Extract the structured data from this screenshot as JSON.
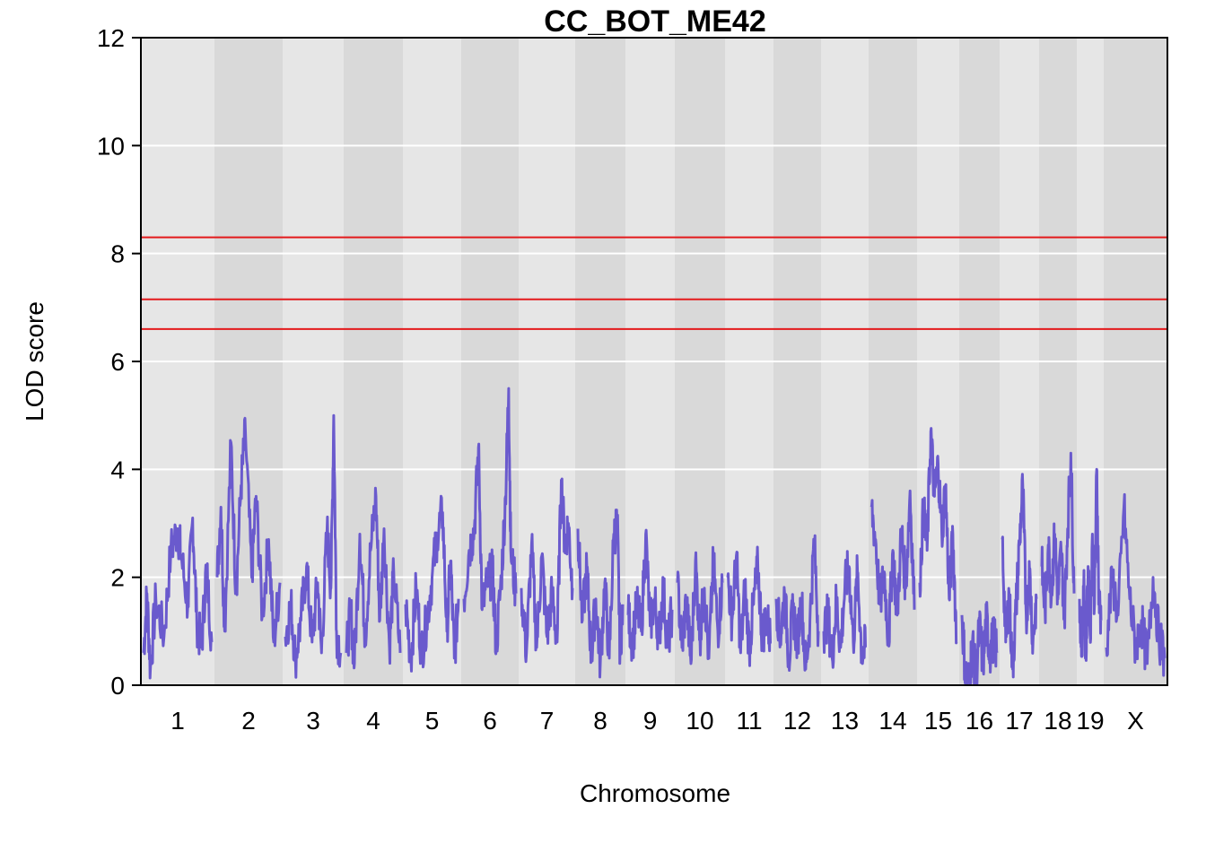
{
  "chart_data": {
    "type": "line",
    "title": "CC_BOT_ME42",
    "xlabel": "Chromosome",
    "ylabel": "LOD score",
    "ylim": [
      0,
      12
    ],
    "yticks": [
      0,
      2,
      4,
      6,
      8,
      10,
      12
    ],
    "grid": true,
    "legend": "none",
    "chromosomes": [
      {
        "name": "1",
        "peaks": [
          [
            0,
            0.6
          ],
          [
            0.05,
            1.7
          ],
          [
            0.1,
            0.3
          ],
          [
            0.18,
            1.6
          ],
          [
            0.3,
            0.9
          ],
          [
            0.4,
            2.5
          ],
          [
            0.5,
            2.9
          ],
          [
            0.55,
            2.4
          ],
          [
            0.65,
            1.5
          ],
          [
            0.72,
            3.1
          ],
          [
            0.78,
            1.2
          ],
          [
            0.85,
            0.7
          ],
          [
            0.92,
            2.2
          ],
          [
            1,
            0.8
          ]
        ]
      },
      {
        "name": "2",
        "peaks": [
          [
            0,
            2.0
          ],
          [
            0.06,
            3.3
          ],
          [
            0.12,
            1.0
          ],
          [
            0.22,
            4.5
          ],
          [
            0.3,
            1.7
          ],
          [
            0.38,
            3.7
          ],
          [
            0.45,
            4.7
          ],
          [
            0.55,
            2.0
          ],
          [
            0.62,
            3.5
          ],
          [
            0.72,
            1.3
          ],
          [
            0.82,
            2.7
          ],
          [
            0.9,
            0.8
          ],
          [
            1,
            1.9
          ]
        ]
      },
      {
        "name": "3",
        "peaks": [
          [
            0,
            0.9
          ],
          [
            0.1,
            1.5
          ],
          [
            0.18,
            0.5
          ],
          [
            0.28,
            1.2
          ],
          [
            0.38,
            2.2
          ],
          [
            0.48,
            0.8
          ],
          [
            0.58,
            1.9
          ],
          [
            0.65,
            0.6
          ],
          [
            0.75,
            2.9
          ],
          [
            0.82,
            1.8
          ],
          [
            0.87,
            5.0
          ],
          [
            0.92,
            1.0
          ],
          [
            1,
            0.6
          ]
        ]
      },
      {
        "name": "4",
        "peaks": [
          [
            0,
            0.6
          ],
          [
            0.08,
            1.4
          ],
          [
            0.15,
            0.4
          ],
          [
            0.25,
            2.8
          ],
          [
            0.35,
            0.9
          ],
          [
            0.45,
            2.5
          ],
          [
            0.55,
            3.5
          ],
          [
            0.62,
            1.2
          ],
          [
            0.7,
            2.9
          ],
          [
            0.8,
            0.7
          ],
          [
            0.88,
            2.1
          ],
          [
            1,
            0.6
          ]
        ]
      },
      {
        "name": "5",
        "peaks": [
          [
            0,
            1.5
          ],
          [
            0.1,
            0.5
          ],
          [
            0.2,
            1.8
          ],
          [
            0.3,
            0.6
          ],
          [
            0.4,
            1.2
          ],
          [
            0.5,
            2.0
          ],
          [
            0.6,
            2.8
          ],
          [
            0.7,
            3.2
          ],
          [
            0.78,
            1.0
          ],
          [
            0.85,
            2.3
          ],
          [
            0.92,
            0.5
          ],
          [
            1,
            1.6
          ]
        ]
      },
      {
        "name": "6",
        "peaks": [
          [
            0,
            1.6
          ],
          [
            0.1,
            2.5
          ],
          [
            0.2,
            2.9
          ],
          [
            0.28,
            4.4
          ],
          [
            0.35,
            1.4
          ],
          [
            0.45,
            1.9
          ],
          [
            0.55,
            2.1
          ],
          [
            0.62,
            0.7
          ],
          [
            0.72,
            2.0
          ],
          [
            0.8,
            3.5
          ],
          [
            0.86,
            5.5
          ],
          [
            0.9,
            2.5
          ],
          [
            1,
            1.7
          ]
        ]
      },
      {
        "name": "7",
        "peaks": [
          [
            0,
            1.8
          ],
          [
            0.1,
            0.6
          ],
          [
            0.2,
            2.6
          ],
          [
            0.3,
            0.7
          ],
          [
            0.4,
            2.4
          ],
          [
            0.5,
            0.9
          ],
          [
            0.6,
            1.7
          ],
          [
            0.7,
            0.8
          ],
          [
            0.78,
            3.8
          ],
          [
            0.85,
            2.6
          ],
          [
            0.92,
            3.0
          ],
          [
            1,
            1.8
          ]
        ]
      },
      {
        "name": "8",
        "peaks": [
          [
            0,
            2.9
          ],
          [
            0.1,
            1.2
          ],
          [
            0.2,
            2.2
          ],
          [
            0.3,
            0.5
          ],
          [
            0.4,
            1.6
          ],
          [
            0.5,
            0.4
          ],
          [
            0.6,
            1.9
          ],
          [
            0.7,
            0.5
          ],
          [
            0.8,
            2.8
          ],
          [
            0.88,
            3.0
          ],
          [
            0.94,
            0.6
          ],
          [
            1,
            1.5
          ]
        ]
      },
      {
        "name": "9",
        "peaks": [
          [
            0,
            1.3
          ],
          [
            0.1,
            0.8
          ],
          [
            0.2,
            1.5
          ],
          [
            0.3,
            1.0
          ],
          [
            0.4,
            2.8
          ],
          [
            0.5,
            1.1
          ],
          [
            0.6,
            1.6
          ],
          [
            0.7,
            0.9
          ],
          [
            0.8,
            1.8
          ],
          [
            0.9,
            0.7
          ],
          [
            1,
            1.4
          ]
        ]
      },
      {
        "name": "10",
        "peaks": [
          [
            0,
            1.9
          ],
          [
            0.1,
            0.7
          ],
          [
            0.2,
            1.6
          ],
          [
            0.3,
            0.4
          ],
          [
            0.4,
            2.3
          ],
          [
            0.5,
            0.9
          ],
          [
            0.6,
            1.8
          ],
          [
            0.7,
            0.5
          ],
          [
            0.8,
            2.3
          ],
          [
            0.9,
            1.0
          ],
          [
            1,
            1.9
          ]
        ]
      },
      {
        "name": "11",
        "peaks": [
          [
            0,
            2.0
          ],
          [
            0.1,
            1.2
          ],
          [
            0.2,
            2.4
          ],
          [
            0.3,
            0.6
          ],
          [
            0.4,
            1.8
          ],
          [
            0.5,
            0.7
          ],
          [
            0.6,
            1.5
          ],
          [
            0.7,
            2.2
          ],
          [
            0.8,
            0.9
          ],
          [
            0.9,
            1.3
          ],
          [
            1,
            0.8
          ]
        ]
      },
      {
        "name": "12",
        "peaks": [
          [
            0,
            1.6
          ],
          [
            0.1,
            0.9
          ],
          [
            0.2,
            1.7
          ],
          [
            0.3,
            0.5
          ],
          [
            0.4,
            1.4
          ],
          [
            0.5,
            0.8
          ],
          [
            0.6,
            1.6
          ],
          [
            0.7,
            0.3
          ],
          [
            0.8,
            1.2
          ],
          [
            0.9,
            2.7
          ],
          [
            1,
            1.0
          ]
        ]
      },
      {
        "name": "13",
        "peaks": [
          [
            0,
            1.0
          ],
          [
            0.1,
            1.3
          ],
          [
            0.2,
            0.5
          ],
          [
            0.3,
            1.6
          ],
          [
            0.4,
            0.7
          ],
          [
            0.5,
            1.8
          ],
          [
            0.6,
            2.2
          ],
          [
            0.7,
            0.8
          ],
          [
            0.8,
            2.1
          ],
          [
            0.9,
            0.6
          ],
          [
            1,
            0.7
          ]
        ]
      },
      {
        "name": "14",
        "peaks": [
          [
            0,
            3.3
          ],
          [
            0.1,
            2.7
          ],
          [
            0.2,
            1.5
          ],
          [
            0.3,
            2.1
          ],
          [
            0.4,
            0.8
          ],
          [
            0.5,
            2.5
          ],
          [
            0.6,
            1.3
          ],
          [
            0.7,
            2.9
          ],
          [
            0.8,
            1.8
          ],
          [
            0.9,
            3.6
          ],
          [
            1,
            1.4
          ]
        ]
      },
      {
        "name": "15",
        "peaks": [
          [
            0,
            1.9
          ],
          [
            0.1,
            3.3
          ],
          [
            0.2,
            2.5
          ],
          [
            0.3,
            4.7
          ],
          [
            0.4,
            3.5
          ],
          [
            0.5,
            4.1
          ],
          [
            0.6,
            2.8
          ],
          [
            0.7,
            3.7
          ],
          [
            0.8,
            1.6
          ],
          [
            0.9,
            2.8
          ],
          [
            1,
            0.8
          ]
        ]
      },
      {
        "name": "16",
        "peaks": [
          [
            0,
            1.3
          ],
          [
            0.1,
            0.2
          ],
          [
            0.2,
            0.05
          ],
          [
            0.3,
            0.8
          ],
          [
            0.4,
            0.1
          ],
          [
            0.5,
            1.1
          ],
          [
            0.6,
            0.4
          ],
          [
            0.7,
            1.2
          ],
          [
            0.8,
            0.6
          ],
          [
            0.9,
            0.9
          ],
          [
            1,
            0.6
          ]
        ]
      },
      {
        "name": "17",
        "peaks": [
          [
            0,
            2.7
          ],
          [
            0.1,
            0.8
          ],
          [
            0.2,
            1.7
          ],
          [
            0.3,
            0.3
          ],
          [
            0.4,
            1.4
          ],
          [
            0.5,
            2.6
          ],
          [
            0.6,
            3.7
          ],
          [
            0.7,
            1.3
          ],
          [
            0.8,
            2.1
          ],
          [
            0.9,
            0.8
          ],
          [
            1,
            1.6
          ]
        ]
      },
      {
        "name": "18",
        "peaks": [
          [
            0,
            2.2
          ],
          [
            0.1,
            1.4
          ],
          [
            0.2,
            2.6
          ],
          [
            0.3,
            1.7
          ],
          [
            0.4,
            2.8
          ],
          [
            0.5,
            1.6
          ],
          [
            0.6,
            2.5
          ],
          [
            0.7,
            1.3
          ],
          [
            0.8,
            2.9
          ],
          [
            0.9,
            4.3
          ],
          [
            1,
            1.7
          ]
        ]
      },
      {
        "name": "19",
        "peaks": [
          [
            0,
            1.6
          ],
          [
            0.1,
            0.6
          ],
          [
            0.2,
            1.9
          ],
          [
            0.3,
            0.5
          ],
          [
            0.4,
            2.2
          ],
          [
            0.5,
            0.9
          ],
          [
            0.6,
            2.8
          ],
          [
            0.7,
            1.5
          ],
          [
            0.8,
            4.0
          ],
          [
            0.9,
            1.6
          ],
          [
            1,
            1.2
          ]
        ]
      },
      {
        "name": "X",
        "peaks": [
          [
            0,
            0.7
          ],
          [
            0.1,
            2.0
          ],
          [
            0.2,
            1.3
          ],
          [
            0.3,
            3.3
          ],
          [
            0.4,
            1.6
          ],
          [
            0.5,
            0.7
          ],
          [
            0.6,
            1.2
          ],
          [
            0.7,
            0.4
          ],
          [
            0.8,
            2.0
          ],
          [
            0.9,
            0.9
          ],
          [
            1,
            0.5
          ]
        ]
      }
    ],
    "thresholds": [
      8.3,
      7.15,
      6.6
    ],
    "colors": {
      "line": "#6a5acd",
      "threshold": "#e31a1c",
      "band_light": "#e6e6e6",
      "band_dark": "#d9d9d9",
      "grid": "#ffffff"
    }
  }
}
